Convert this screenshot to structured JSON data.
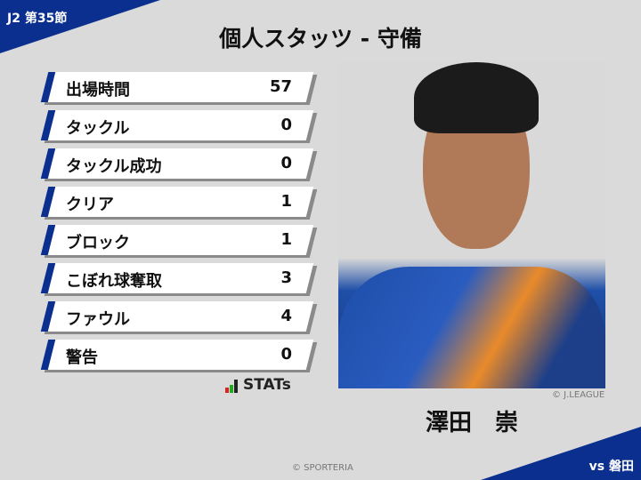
{
  "header": {
    "round": "J2 第35節",
    "title": "個人スタッツ - 守備"
  },
  "stats": [
    {
      "label": "出場時間",
      "value": "57"
    },
    {
      "label": "タックル",
      "value": "0"
    },
    {
      "label": "タックル成功",
      "value": "0"
    },
    {
      "label": "クリア",
      "value": "1"
    },
    {
      "label": "ブロック",
      "value": "1"
    },
    {
      "label": "こぼれ球奪取",
      "value": "3"
    },
    {
      "label": "ファウル",
      "value": "4"
    },
    {
      "label": "警告",
      "value": "0"
    }
  ],
  "logo": {
    "text": "STATs"
  },
  "player": {
    "name": "澤田　崇",
    "photo_credit": "© J.LEAGUE"
  },
  "footer": {
    "credit": "© SPORTERIA",
    "opponent": "vs 磐田"
  },
  "colors": {
    "accent": "#0a2f8f",
    "background": "#dadada"
  }
}
